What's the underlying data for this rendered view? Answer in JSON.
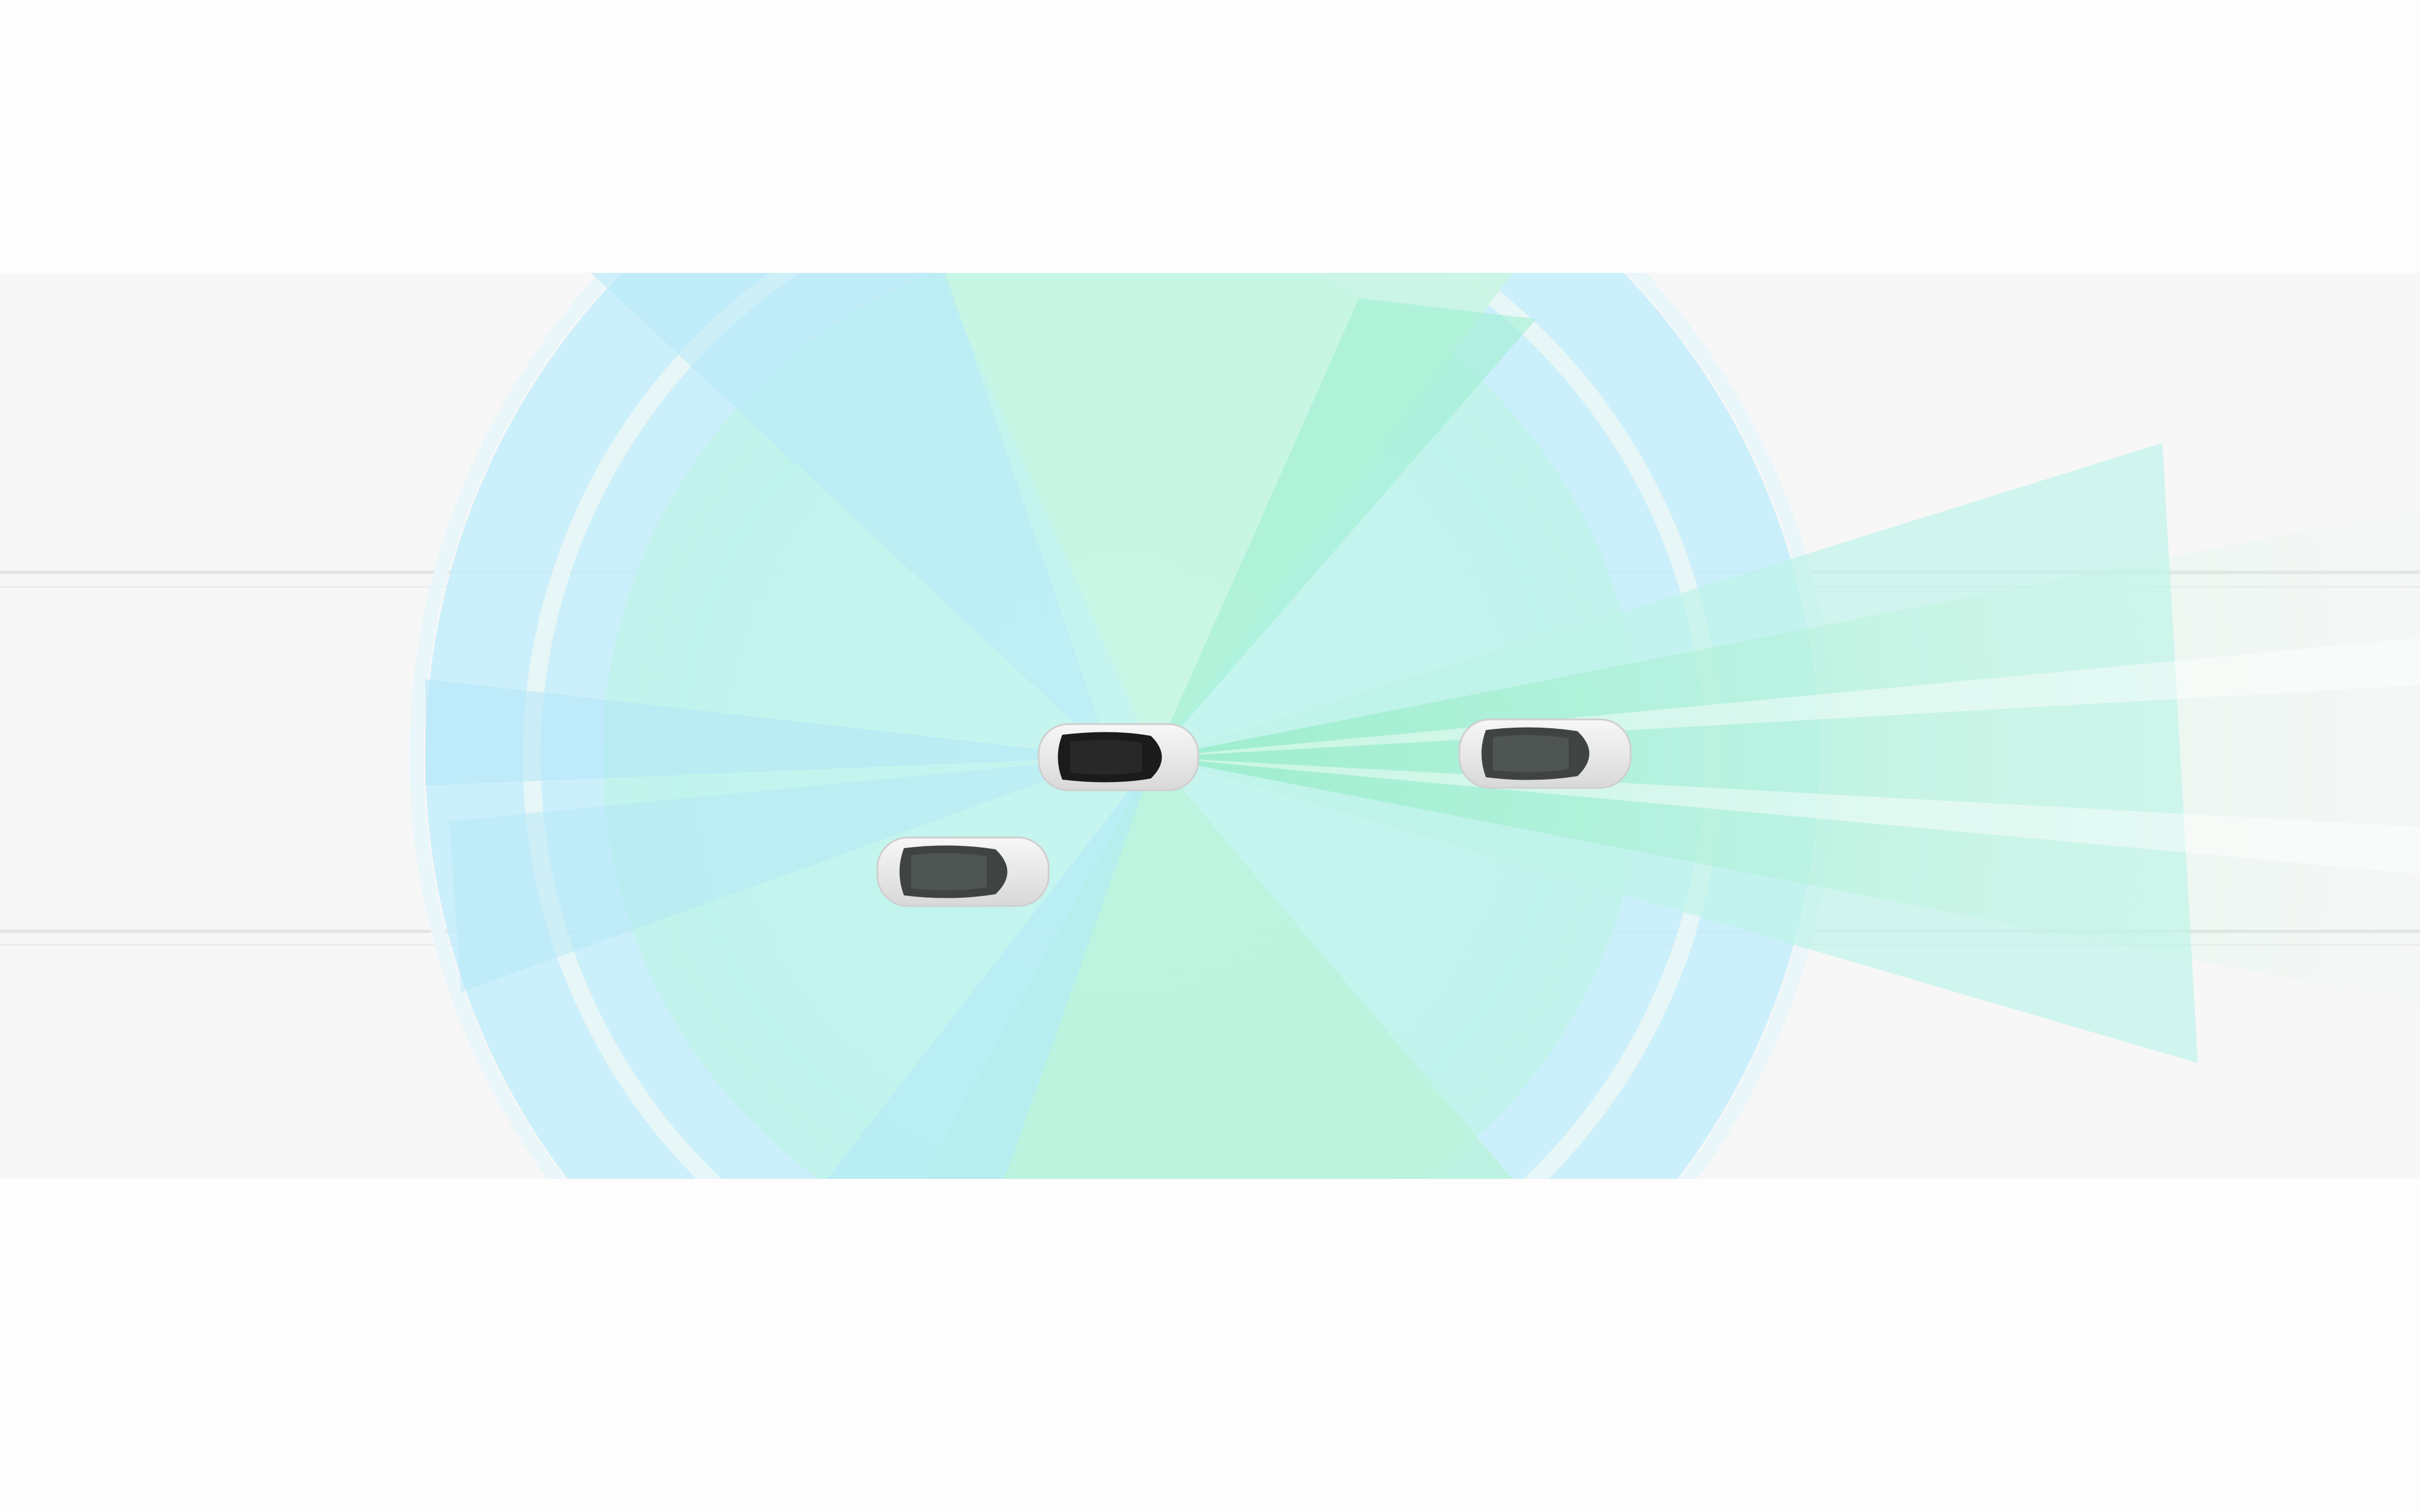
{
  "scene": {
    "subject": "sensor-coverage-illustration",
    "vehicles": [
      {
        "id": "ego-car",
        "role": "ego",
        "window_color": "#1b1b1b"
      },
      {
        "id": "car-behind",
        "role": "other",
        "window_color": "#3f4443"
      },
      {
        "id": "car-ahead",
        "role": "other",
        "window_color": "#3f4443"
      }
    ],
    "colors": {
      "background": "#fdfdfd",
      "road": "#f6f6f6",
      "lane_line": "#e6e6e6",
      "radar_blue": "#bfeefb",
      "radar_blue_deep": "#9fe3f7",
      "camera_green": "#b6f3d8",
      "camera_cyan": "#a8f1e6",
      "car_body": "#ededed"
    }
  }
}
